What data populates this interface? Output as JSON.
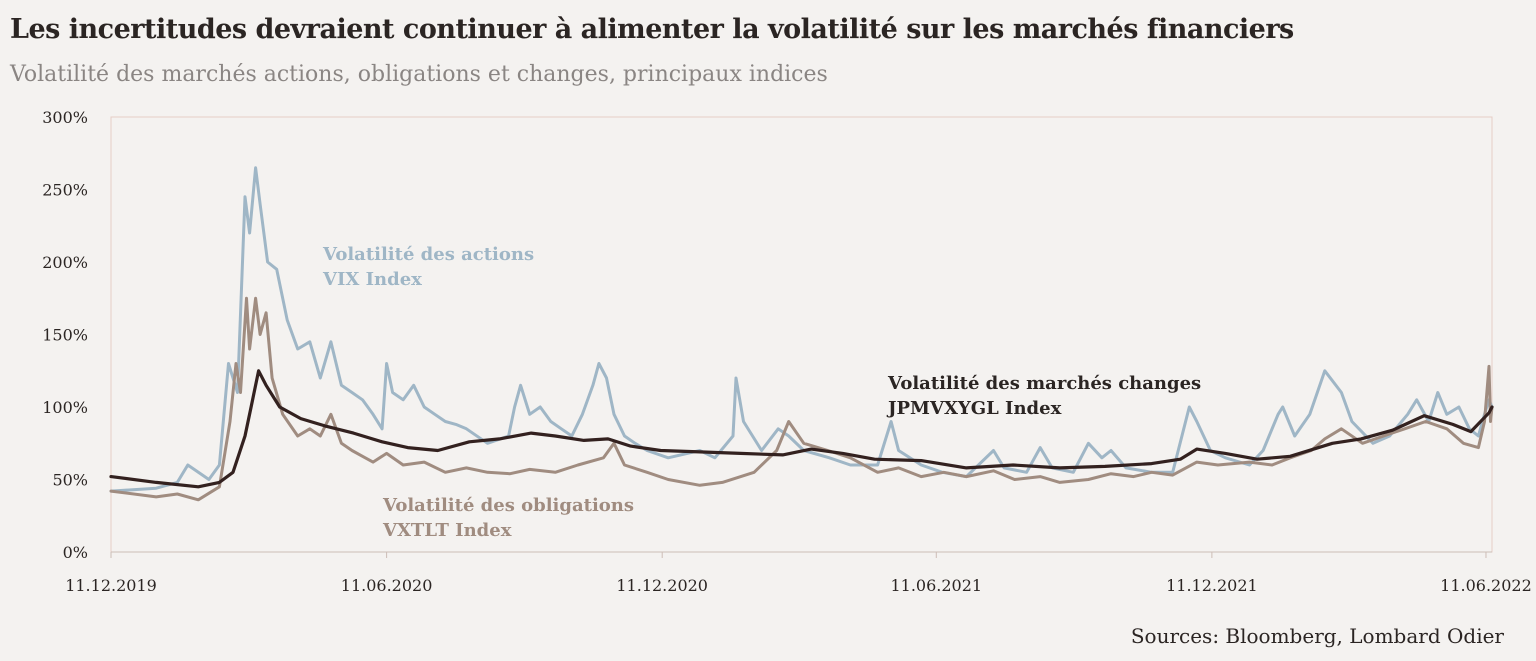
{
  "chart_data": {
    "type": "line",
    "title": "Les incertitudes devraient continuer à alimenter la volatilité sur les marchés financiers",
    "subtitle": "Volatilité des marchés actions, obligations et changes, principaux indices",
    "source": "Sources: Bloomberg, Lombard Odier",
    "x_ticks": [
      "11.12.2019",
      "11.06.2020",
      "11.12.2020",
      "11.06.2021",
      "11.12.2021",
      "11.06.2022"
    ],
    "y_ticks": [
      "0%",
      "50%",
      "100%",
      "150%",
      "200%",
      "250%",
      "300%"
    ],
    "ylim": [
      0,
      300
    ],
    "xlim": [
      "2019-12-11",
      "2022-06-15"
    ],
    "grid": false,
    "series": [
      {
        "key": "vix",
        "name": "Volatilité des actions",
        "name2": "VIX Index",
        "color": "#9fb6c6",
        "points": [
          [
            "2019-12-11",
            42
          ],
          [
            "2020-01-10",
            44
          ],
          [
            "2020-01-24",
            48
          ],
          [
            "2020-01-31",
            60
          ],
          [
            "2020-02-14",
            50
          ],
          [
            "2020-02-21",
            60
          ],
          [
            "2020-02-27",
            130
          ],
          [
            "2020-03-04",
            110
          ],
          [
            "2020-03-09",
            245
          ],
          [
            "2020-03-12",
            220
          ],
          [
            "2020-03-16",
            265
          ],
          [
            "2020-03-19",
            240
          ],
          [
            "2020-03-24",
            200
          ],
          [
            "2020-03-30",
            195
          ],
          [
            "2020-04-06",
            160
          ],
          [
            "2020-04-13",
            140
          ],
          [
            "2020-04-21",
            145
          ],
          [
            "2020-04-28",
            120
          ],
          [
            "2020-05-05",
            145
          ],
          [
            "2020-05-12",
            115
          ],
          [
            "2020-05-19",
            110
          ],
          [
            "2020-05-26",
            105
          ],
          [
            "2020-06-02",
            95
          ],
          [
            "2020-06-08",
            85
          ],
          [
            "2020-06-11",
            130
          ],
          [
            "2020-06-15",
            110
          ],
          [
            "2020-06-22",
            105
          ],
          [
            "2020-06-29",
            115
          ],
          [
            "2020-07-06",
            100
          ],
          [
            "2020-07-13",
            95
          ],
          [
            "2020-07-20",
            90
          ],
          [
            "2020-07-27",
            88
          ],
          [
            "2020-08-03",
            85
          ],
          [
            "2020-08-17",
            75
          ],
          [
            "2020-08-31",
            80
          ],
          [
            "2020-09-04",
            100
          ],
          [
            "2020-09-08",
            115
          ],
          [
            "2020-09-14",
            95
          ],
          [
            "2020-09-21",
            100
          ],
          [
            "2020-09-28",
            90
          ],
          [
            "2020-10-05",
            85
          ],
          [
            "2020-10-12",
            80
          ],
          [
            "2020-10-19",
            95
          ],
          [
            "2020-10-26",
            115
          ],
          [
            "2020-10-30",
            130
          ],
          [
            "2020-11-04",
            120
          ],
          [
            "2020-11-09",
            95
          ],
          [
            "2020-11-16",
            80
          ],
          [
            "2020-11-23",
            75
          ],
          [
            "2020-12-01",
            70
          ],
          [
            "2020-12-15",
            65
          ],
          [
            "2021-01-05",
            70
          ],
          [
            "2021-01-15",
            65
          ],
          [
            "2021-01-27",
            80
          ],
          [
            "2021-01-29",
            120
          ],
          [
            "2021-02-03",
            90
          ],
          [
            "2021-02-15",
            70
          ],
          [
            "2021-02-26",
            85
          ],
          [
            "2021-03-05",
            80
          ],
          [
            "2021-03-15",
            70
          ],
          [
            "2021-04-01",
            65
          ],
          [
            "2021-04-15",
            60
          ],
          [
            "2021-05-03",
            60
          ],
          [
            "2021-05-12",
            90
          ],
          [
            "2021-05-17",
            70
          ],
          [
            "2021-06-01",
            60
          ],
          [
            "2021-06-15",
            55
          ],
          [
            "2021-07-01",
            52
          ],
          [
            "2021-07-19",
            70
          ],
          [
            "2021-07-26",
            58
          ],
          [
            "2021-08-10",
            55
          ],
          [
            "2021-08-19",
            72
          ],
          [
            "2021-08-27",
            58
          ],
          [
            "2021-09-10",
            55
          ],
          [
            "2021-09-20",
            75
          ],
          [
            "2021-09-29",
            65
          ],
          [
            "2021-10-05",
            70
          ],
          [
            "2021-10-15",
            58
          ],
          [
            "2021-11-01",
            55
          ],
          [
            "2021-11-15",
            55
          ],
          [
            "2021-11-26",
            100
          ],
          [
            "2021-12-01",
            90
          ],
          [
            "2021-12-10",
            70
          ],
          [
            "2021-12-20",
            65
          ],
          [
            "2022-01-05",
            60
          ],
          [
            "2022-01-14",
            70
          ],
          [
            "2022-01-24",
            95
          ],
          [
            "2022-01-27",
            100
          ],
          [
            "2022-02-04",
            80
          ],
          [
            "2022-02-14",
            95
          ],
          [
            "2022-02-24",
            125
          ],
          [
            "2022-03-07",
            110
          ],
          [
            "2022-03-14",
            90
          ],
          [
            "2022-03-28",
            75
          ],
          [
            "2022-04-08",
            80
          ],
          [
            "2022-04-20",
            95
          ],
          [
            "2022-04-26",
            105
          ],
          [
            "2022-05-04",
            90
          ],
          [
            "2022-05-10",
            110
          ],
          [
            "2022-05-16",
            95
          ],
          [
            "2022-05-24",
            100
          ],
          [
            "2022-05-31",
            85
          ],
          [
            "2022-06-06",
            80
          ],
          [
            "2022-06-10",
            95
          ],
          [
            "2022-06-13",
            105
          ],
          [
            "2022-06-15",
            100
          ]
        ]
      },
      {
        "key": "vxtlt",
        "name": "Volatilité des obligations",
        "name2": "VXTLT Index",
        "color": "#a08c80",
        "points": [
          [
            "2019-12-11",
            42
          ],
          [
            "2020-01-10",
            38
          ],
          [
            "2020-01-24",
            40
          ],
          [
            "2020-02-07",
            36
          ],
          [
            "2020-02-21",
            45
          ],
          [
            "2020-02-28",
            90
          ],
          [
            "2020-03-03",
            130
          ],
          [
            "2020-03-06",
            110
          ],
          [
            "2020-03-10",
            175
          ],
          [
            "2020-03-12",
            140
          ],
          [
            "2020-03-16",
            175
          ],
          [
            "2020-03-19",
            150
          ],
          [
            "2020-03-23",
            165
          ],
          [
            "2020-03-27",
            120
          ],
          [
            "2020-04-03",
            95
          ],
          [
            "2020-04-13",
            80
          ],
          [
            "2020-04-21",
            85
          ],
          [
            "2020-04-28",
            80
          ],
          [
            "2020-05-05",
            95
          ],
          [
            "2020-05-12",
            75
          ],
          [
            "2020-05-19",
            70
          ],
          [
            "2020-05-26",
            66
          ],
          [
            "2020-06-02",
            62
          ],
          [
            "2020-06-11",
            68
          ],
          [
            "2020-06-22",
            60
          ],
          [
            "2020-07-06",
            62
          ],
          [
            "2020-07-20",
            55
          ],
          [
            "2020-08-03",
            58
          ],
          [
            "2020-08-17",
            55
          ],
          [
            "2020-09-01",
            54
          ],
          [
            "2020-09-14",
            57
          ],
          [
            "2020-10-01",
            55
          ],
          [
            "2020-10-16",
            60
          ],
          [
            "2020-11-02",
            65
          ],
          [
            "2020-11-09",
            75
          ],
          [
            "2020-11-16",
            60
          ],
          [
            "2020-12-01",
            55
          ],
          [
            "2020-12-15",
            50
          ],
          [
            "2021-01-05",
            46
          ],
          [
            "2021-01-20",
            48
          ],
          [
            "2021-02-10",
            55
          ],
          [
            "2021-02-25",
            70
          ],
          [
            "2021-03-05",
            90
          ],
          [
            "2021-03-15",
            75
          ],
          [
            "2021-03-31",
            70
          ],
          [
            "2021-04-15",
            65
          ],
          [
            "2021-05-03",
            55
          ],
          [
            "2021-05-17",
            58
          ],
          [
            "2021-06-01",
            52
          ],
          [
            "2021-06-16",
            55
          ],
          [
            "2021-07-01",
            52
          ],
          [
            "2021-07-19",
            56
          ],
          [
            "2021-08-02",
            50
          ],
          [
            "2021-08-19",
            52
          ],
          [
            "2021-09-01",
            48
          ],
          [
            "2021-09-20",
            50
          ],
          [
            "2021-10-05",
            54
          ],
          [
            "2021-10-20",
            52
          ],
          [
            "2021-11-01",
            55
          ],
          [
            "2021-11-15",
            53
          ],
          [
            "2021-12-01",
            62
          ],
          [
            "2021-12-15",
            60
          ],
          [
            "2022-01-05",
            62
          ],
          [
            "2022-01-20",
            60
          ],
          [
            "2022-02-01",
            65
          ],
          [
            "2022-02-15",
            70
          ],
          [
            "2022-02-24",
            78
          ],
          [
            "2022-03-07",
            85
          ],
          [
            "2022-03-21",
            75
          ],
          [
            "2022-04-04",
            80
          ],
          [
            "2022-04-18",
            85
          ],
          [
            "2022-05-02",
            90
          ],
          [
            "2022-05-16",
            85
          ],
          [
            "2022-05-27",
            75
          ],
          [
            "2022-06-06",
            72
          ],
          [
            "2022-06-10",
            90
          ],
          [
            "2022-06-13",
            128
          ],
          [
            "2022-06-14",
            90
          ],
          [
            "2022-06-15",
            100
          ]
        ]
      },
      {
        "key": "jpm",
        "name": "Volatilité des marchés changes",
        "name2": "JPMVXYGL Index",
        "color": "#33211f",
        "points": [
          [
            "2019-12-11",
            52
          ],
          [
            "2020-01-10",
            48
          ],
          [
            "2020-02-07",
            45
          ],
          [
            "2020-02-21",
            48
          ],
          [
            "2020-03-01",
            55
          ],
          [
            "2020-03-09",
            80
          ],
          [
            "2020-03-13",
            100
          ],
          [
            "2020-03-18",
            125
          ],
          [
            "2020-03-23",
            115
          ],
          [
            "2020-04-01",
            100
          ],
          [
            "2020-04-15",
            92
          ],
          [
            "2020-05-01",
            87
          ],
          [
            "2020-05-20",
            82
          ],
          [
            "2020-06-08",
            76
          ],
          [
            "2020-06-25",
            72
          ],
          [
            "2020-07-15",
            70
          ],
          [
            "2020-08-05",
            76
          ],
          [
            "2020-08-25",
            78
          ],
          [
            "2020-09-15",
            82
          ],
          [
            "2020-10-01",
            80
          ],
          [
            "2020-10-20",
            77
          ],
          [
            "2020-11-05",
            78
          ],
          [
            "2020-11-20",
            73
          ],
          [
            "2020-12-10",
            70
          ],
          [
            "2021-01-05",
            69
          ],
          [
            "2021-02-01",
            68
          ],
          [
            "2021-03-01",
            67
          ],
          [
            "2021-03-20",
            71
          ],
          [
            "2021-04-10",
            68
          ],
          [
            "2021-05-01",
            64
          ],
          [
            "2021-06-01",
            63
          ],
          [
            "2021-07-01",
            58
          ],
          [
            "2021-08-01",
            60
          ],
          [
            "2021-09-01",
            58
          ],
          [
            "2021-10-01",
            59
          ],
          [
            "2021-11-01",
            61
          ],
          [
            "2021-11-20",
            64
          ],
          [
            "2021-12-01",
            71
          ],
          [
            "2021-12-20",
            68
          ],
          [
            "2022-01-10",
            64
          ],
          [
            "2022-02-01",
            66
          ],
          [
            "2022-03-01",
            75
          ],
          [
            "2022-03-20",
            78
          ],
          [
            "2022-04-10",
            84
          ],
          [
            "2022-05-01",
            94
          ],
          [
            "2022-05-20",
            88
          ],
          [
            "2022-06-01",
            83
          ],
          [
            "2022-06-13",
            96
          ],
          [
            "2022-06-15",
            100
          ]
        ]
      }
    ]
  }
}
